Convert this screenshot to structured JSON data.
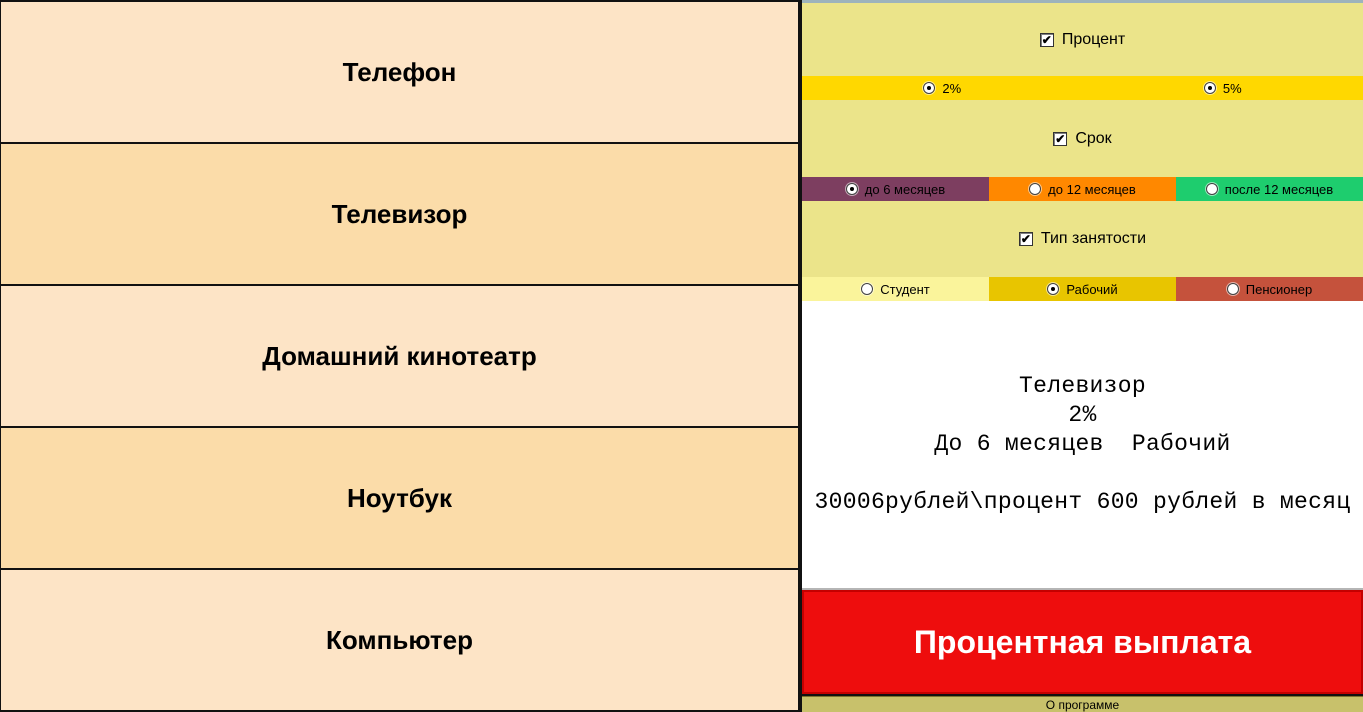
{
  "products": {
    "items": [
      {
        "label": "Телефон"
      },
      {
        "label": "Телевизор"
      },
      {
        "label": "Домашний кинотеатр"
      },
      {
        "label": "Ноутбук"
      },
      {
        "label": "Компьютер"
      }
    ]
  },
  "filters": {
    "percent": {
      "label": "Процент",
      "checked": true,
      "options": [
        {
          "label": "2%",
          "selected": true
        },
        {
          "label": "5%",
          "selected": true
        }
      ]
    },
    "term": {
      "label": "Срок",
      "checked": true,
      "options": [
        {
          "label": "до 6 месяцев",
          "selected": true
        },
        {
          "label": "до 12 месяцев",
          "selected": false
        },
        {
          "label": "после 12 месяцев",
          "selected": false
        }
      ]
    },
    "employment": {
      "label": "Тип занятости",
      "checked": true,
      "options": [
        {
          "label": "Студент",
          "selected": false
        },
        {
          "label": "Рабочий",
          "selected": true
        },
        {
          "label": "Пенсионер",
          "selected": false
        }
      ]
    }
  },
  "result": {
    "line1": "Телевизор",
    "line2": "2%",
    "line3": "До 6 месяцев  Рабочий",
    "line4": "30006рублей\\процент 600 рублей в месяц"
  },
  "actions": {
    "calculate_label": "Процентная выплата",
    "about_label": "О программе"
  },
  "colors": {
    "panel_light": "#FDE4C6",
    "panel_dark": "#FBDCA9",
    "section_bg": "#EBE48A",
    "percent_bar": "#FFD800",
    "term_purple": "#7D3E60",
    "term_orange": "#FF8800",
    "term_green": "#1ECD6E",
    "employment_light_yellow": "#FAF49B",
    "employment_gold": "#E8C500",
    "employment_brick": "#C5523C",
    "button_red": "#EE0D0D",
    "about_olive": "#C8C16B"
  }
}
